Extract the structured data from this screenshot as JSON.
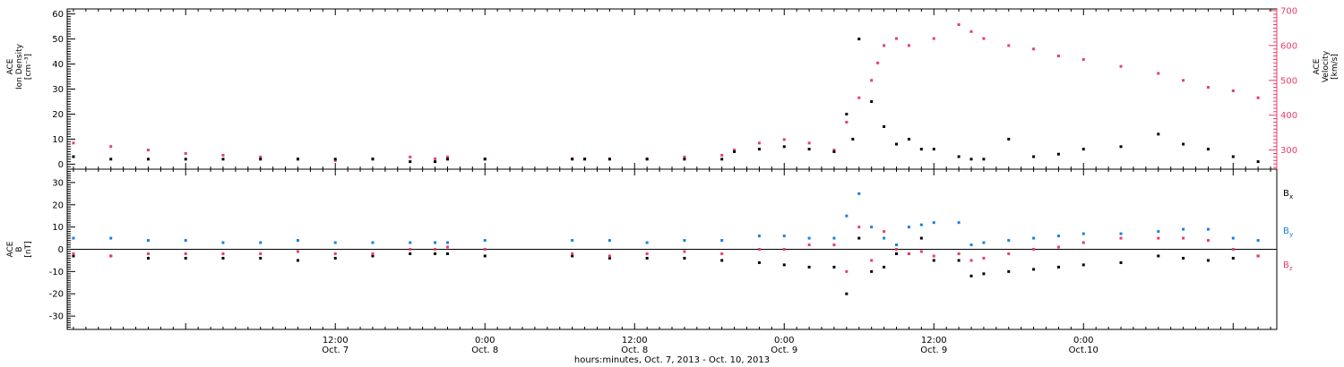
{
  "chart_data": [
    {
      "type": "scatter",
      "title": "",
      "ylabel_lines": [
        "ACE",
        "Ion Density",
        "[cm⁻³]"
      ],
      "y2label_lines": [
        "ACE",
        "Velocity",
        "[km/s]"
      ],
      "xlim_hours": [
        -9.5,
        87.5
      ],
      "ylim": [
        -2,
        62
      ],
      "y2lim": [
        245,
        705
      ],
      "yticks": [
        "0",
        "10",
        "20",
        "30",
        "40",
        "50",
        "60"
      ],
      "y2ticks": [
        "300",
        "400",
        "500",
        "600",
        "700"
      ],
      "series": [
        {
          "color": "#000000",
          "axis": "left",
          "x": [
            -9,
            -6,
            -3,
            0,
            3,
            6,
            9,
            12,
            15,
            18,
            20,
            21,
            24,
            31,
            32,
            34,
            37,
            40,
            43,
            44,
            46,
            48,
            50,
            52,
            53,
            53.5,
            54,
            55,
            56,
            57,
            58,
            59,
            60,
            62,
            63,
            64,
            66,
            68,
            70,
            72,
            75,
            78,
            80,
            82,
            84,
            86
          ],
          "values": [
            3,
            2,
            2,
            2,
            2,
            2,
            2,
            2,
            2,
            1,
            1,
            2,
            2,
            2,
            2,
            2,
            2,
            2,
            2,
            5,
            6,
            7,
            6,
            5,
            20,
            10,
            50,
            25,
            15,
            8,
            10,
            6,
            6,
            3,
            2,
            2,
            10,
            3,
            4,
            6,
            7,
            12,
            8,
            6,
            3,
            1
          ]
        },
        {
          "color": "#e83d6a",
          "axis": "right",
          "x": [
            -9,
            -6,
            -3,
            0,
            3,
            6,
            9,
            12,
            15,
            18,
            20,
            21,
            24,
            31,
            32,
            34,
            37,
            40,
            43,
            44,
            46,
            48,
            50,
            52,
            53,
            54,
            55,
            55.5,
            56,
            57,
            58,
            60,
            62,
            63,
            64,
            66,
            68,
            70,
            72,
            75,
            78,
            80,
            82,
            84,
            86
          ],
          "values": [
            320,
            310,
            300,
            290,
            285,
            280,
            275,
            270,
            275,
            280,
            275,
            280,
            275,
            275,
            275,
            275,
            275,
            280,
            285,
            300,
            320,
            330,
            320,
            300,
            380,
            450,
            500,
            550,
            600,
            620,
            600,
            620,
            660,
            640,
            620,
            600,
            590,
            570,
            560,
            540,
            520,
            500,
            480,
            470,
            450
          ]
        }
      ]
    },
    {
      "type": "scatter",
      "title": "",
      "ylabel_lines": [
        "ACE",
        "B",
        "[nT]"
      ],
      "xlim_hours": [
        -9.5,
        87.5
      ],
      "ylim": [
        -36,
        36
      ],
      "yticks": [
        "-30",
        "-20",
        "-10",
        "0",
        "10",
        "20",
        "30"
      ],
      "zero_line": true,
      "series": [
        {
          "name": "Bx",
          "label_main": "B",
          "label_sub": "x",
          "color": "#000000",
          "x": [
            -9,
            -6,
            -3,
            0,
            3,
            6,
            9,
            12,
            15,
            18,
            20,
            21,
            24,
            31,
            34,
            37,
            40,
            43,
            46,
            48,
            50,
            52,
            53,
            54,
            55,
            56,
            57,
            58,
            59,
            60,
            62,
            63,
            64,
            66,
            68,
            70,
            72,
            75,
            78,
            80,
            82,
            84,
            86
          ],
          "values": [
            -3,
            -3,
            -4,
            -4,
            -4,
            -4,
            -5,
            -4,
            -3,
            -2,
            -2,
            -2,
            -3,
            -3,
            -4,
            -4,
            -4,
            -5,
            -6,
            -7,
            -8,
            -8,
            -20,
            5,
            -10,
            -8,
            -2,
            -2,
            5,
            -5,
            -5,
            -12,
            -11,
            -10,
            -9,
            -8,
            -7,
            -6,
            -3,
            -4,
            -5,
            -4,
            -3
          ]
        },
        {
          "name": "By",
          "label_main": "B",
          "label_sub": "y",
          "color": "#1b7fe0",
          "x": [
            -9,
            -6,
            -3,
            0,
            3,
            6,
            9,
            12,
            15,
            18,
            20,
            21,
            24,
            31,
            34,
            37,
            40,
            43,
            46,
            48,
            50,
            52,
            53,
            54,
            55,
            56,
            57,
            58,
            59,
            60,
            62,
            63,
            64,
            66,
            68,
            70,
            72,
            75,
            78,
            80,
            82,
            84,
            86
          ],
          "values": [
            5,
            5,
            4,
            4,
            3,
            3,
            4,
            3,
            3,
            3,
            3,
            3,
            4,
            4,
            4,
            3,
            4,
            4,
            6,
            6,
            5,
            5,
            15,
            25,
            10,
            5,
            2,
            10,
            11,
            12,
            12,
            2,
            3,
            4,
            5,
            6,
            7,
            7,
            8,
            9,
            9,
            5,
            4
          ]
        },
        {
          "name": "Bz",
          "label_main": "B",
          "label_sub": "z",
          "color": "#e83d6a",
          "x": [
            -9,
            -6,
            -3,
            0,
            3,
            6,
            9,
            12,
            15,
            18,
            20,
            21,
            24,
            31,
            34,
            37,
            40,
            43,
            46,
            48,
            50,
            52,
            53,
            54,
            55,
            56,
            57,
            58,
            59,
            60,
            62,
            63,
            64,
            66,
            68,
            70,
            72,
            75,
            78,
            80,
            82,
            84,
            86
          ],
          "values": [
            -2,
            -3,
            -2,
            -2,
            -2,
            -2,
            -1,
            -2,
            -2,
            0,
            0,
            1,
            0,
            -2,
            -3,
            -2,
            -1,
            -2,
            0,
            0,
            2,
            2,
            -10,
            10,
            -5,
            8,
            0,
            -2,
            -1,
            -3,
            -2,
            -5,
            -4,
            -2,
            0,
            1,
            3,
            5,
            5,
            5,
            4,
            0,
            -3
          ]
        }
      ]
    }
  ],
  "x_axis": {
    "ticks": [
      {
        "hour": 12,
        "time": "12:00",
        "date": "Oct. 7"
      },
      {
        "hour": 24,
        "time": "0:00",
        "date": "Oct. 8"
      },
      {
        "hour": 36,
        "time": "12:00",
        "date": "Oct. 8"
      },
      {
        "hour": 48,
        "time": "0:00",
        "date": "Oct. 9"
      },
      {
        "hour": 60,
        "time": "12:00",
        "date": "Oct. 9"
      },
      {
        "hour": 72,
        "time": "0:00",
        "date": "Oct.10"
      }
    ],
    "title": "hours:minutes, Oct.  7, 2013 - Oct. 10, 2013"
  },
  "colors": {
    "axis": "#000000",
    "density": "#000000",
    "velocity": "#e83d6a",
    "bx": "#000000",
    "by": "#1b7fe0",
    "bz": "#e83d6a"
  }
}
